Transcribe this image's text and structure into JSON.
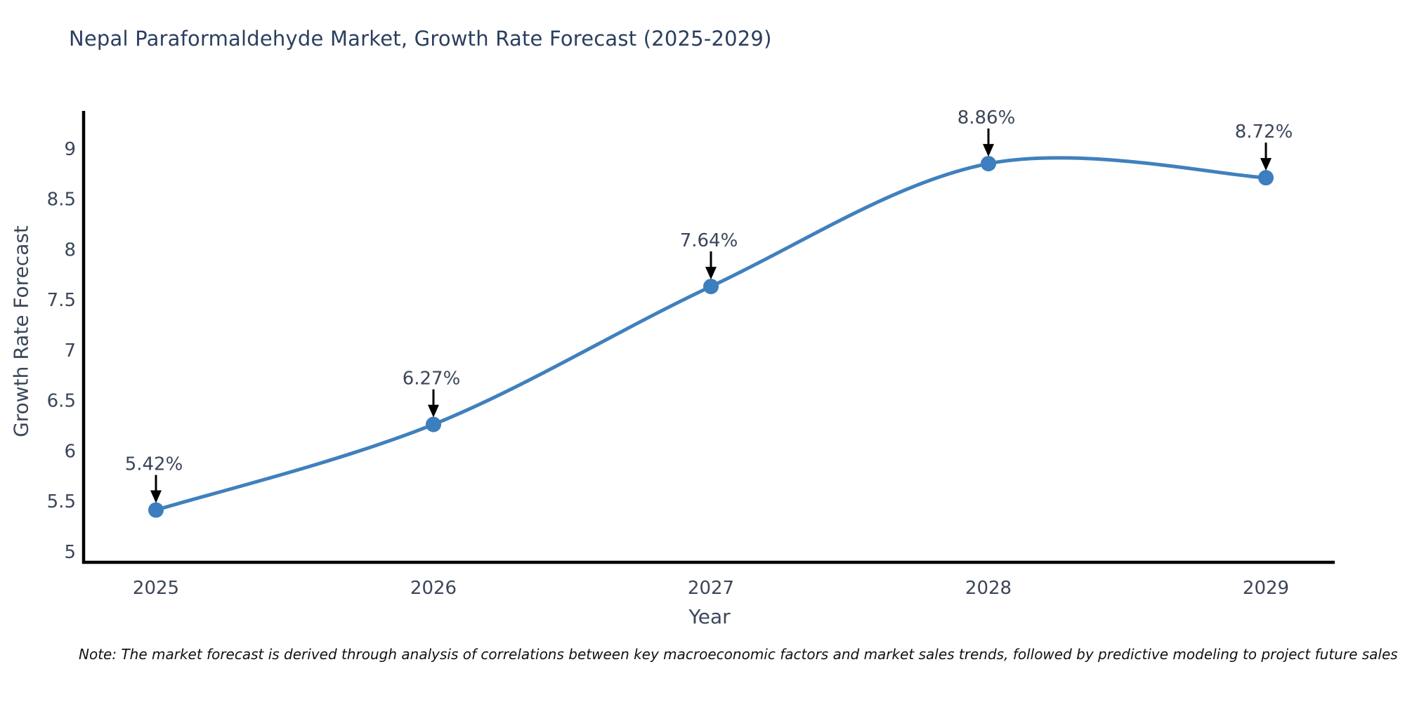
{
  "chart_data": {
    "type": "line",
    "title": "Nepal Paraformaldehyde Market, Growth Rate Forecast (2025-2029)",
    "xlabel": "Year",
    "ylabel": "Growth Rate Forecast",
    "categories": [
      "2025",
      "2026",
      "2027",
      "2028",
      "2029"
    ],
    "series": [
      {
        "name": "Growth Rate Forecast",
        "values": [
          5.42,
          6.27,
          7.64,
          8.86,
          8.72
        ]
      }
    ],
    "point_labels": [
      "5.42%",
      "6.27%",
      "7.64%",
      "8.86%",
      "8.72%"
    ],
    "yticks": [
      5,
      5.5,
      6,
      6.5,
      7,
      7.5,
      8,
      8.5,
      9
    ],
    "ylim": [
      4.89,
      9.38
    ],
    "grid": false,
    "legend": "none",
    "smooth_spline": true,
    "note": "Note: The market forecast is derived through analysis of correlations between key macroeconomic factors and market sales trends, followed by predictive modeling to project future sales",
    "colors": {
      "line": "#4080bd",
      "marker": "#3d7ebe",
      "arrow": "#000000",
      "title": "#2a3f5f",
      "tick": "#3b4659",
      "spine": "#000000"
    }
  }
}
